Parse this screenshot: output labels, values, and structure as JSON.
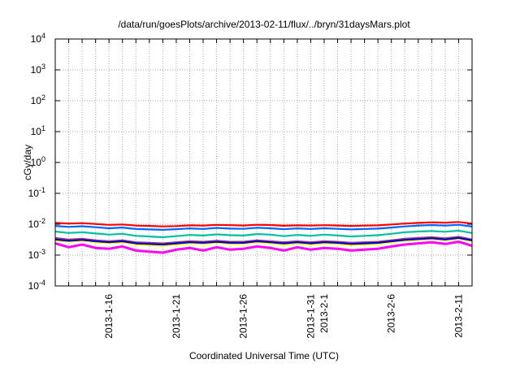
{
  "chart_data": {
    "type": "line",
    "title": "/data/run/goesPlots/archive/2013-02-11/flux/../bryn/31daysMars.plot",
    "xlabel": "Coordinated Universal Time (UTC)",
    "ylabel": "cGy/day",
    "yscale": "log",
    "ylim": [
      0.0001,
      10000
    ],
    "y_ticks": [
      {
        "base": "10",
        "exp": "4"
      },
      {
        "base": "10",
        "exp": "3"
      },
      {
        "base": "10",
        "exp": "2"
      },
      {
        "base": "10",
        "exp": "1"
      },
      {
        "base": "10",
        "exp": "0"
      },
      {
        "base": "10",
        "exp": "-1"
      },
      {
        "base": "10",
        "exp": "-2"
      },
      {
        "base": "10",
        "exp": "-3"
      },
      {
        "base": "10",
        "exp": "-4"
      }
    ],
    "x_start": "2013-01-12",
    "x_end": "2013-02-12",
    "x_tick_labels": [
      {
        "label": "2013-1-16",
        "day": 4
      },
      {
        "label": "2013-1-21",
        "day": 9
      },
      {
        "label": "2013-1-26",
        "day": 14
      },
      {
        "label": "2013-1-31",
        "day": 19
      },
      {
        "label": "2013-2-1",
        "day": 20
      },
      {
        "label": "2013-2-6",
        "day": 25
      },
      {
        "label": "2013-2-11",
        "day": 30
      }
    ],
    "grid": true,
    "series": [
      {
        "name": "red",
        "color": "#ff0000",
        "values": [
          0.011,
          0.0105,
          0.0108,
          0.0102,
          0.0095,
          0.0098,
          0.009,
          0.0088,
          0.0085,
          0.0087,
          0.0092,
          0.009,
          0.0095,
          0.0093,
          0.0091,
          0.0096,
          0.0094,
          0.0089,
          0.0092,
          0.009,
          0.0093,
          0.0091,
          0.0088,
          0.009,
          0.0092,
          0.0098,
          0.0105,
          0.011,
          0.0115,
          0.0112,
          0.0118,
          0.0105
        ]
      },
      {
        "name": "blue",
        "color": "#0066ff",
        "values": [
          0.0088,
          0.0082,
          0.0086,
          0.008,
          0.0074,
          0.0078,
          0.007,
          0.0068,
          0.0066,
          0.0069,
          0.0073,
          0.007,
          0.0076,
          0.0072,
          0.0071,
          0.0077,
          0.0074,
          0.0069,
          0.0073,
          0.007,
          0.0074,
          0.0071,
          0.0068,
          0.007,
          0.0072,
          0.0078,
          0.0085,
          0.009,
          0.0094,
          0.009,
          0.0096,
          0.0084
        ]
      },
      {
        "name": "teal",
        "color": "#00c0a0",
        "values": [
          0.0058,
          0.0052,
          0.0055,
          0.005,
          0.0046,
          0.0049,
          0.0042,
          0.004,
          0.0038,
          0.0041,
          0.0045,
          0.0043,
          0.0047,
          0.0044,
          0.0043,
          0.0048,
          0.0046,
          0.0041,
          0.0045,
          0.0042,
          0.0046,
          0.0043,
          0.004,
          0.0042,
          0.0044,
          0.0049,
          0.0055,
          0.0058,
          0.006,
          0.0057,
          0.0062,
          0.0052
        ]
      },
      {
        "name": "purple",
        "color": "#a04080",
        "values": [
          0.0036,
          0.0032,
          0.0034,
          0.003,
          0.0028,
          0.003,
          0.0026,
          0.0025,
          0.0024,
          0.0026,
          0.0028,
          0.0027,
          0.0029,
          0.0027,
          0.0027,
          0.003,
          0.0028,
          0.0026,
          0.0028,
          0.0026,
          0.0028,
          0.0027,
          0.0025,
          0.0026,
          0.0027,
          0.003,
          0.0034,
          0.0036,
          0.0038,
          0.0035,
          0.0039,
          0.0032
        ]
      },
      {
        "name": "yellow",
        "color": "#ffff00",
        "values": [
          0.003,
          0.0027,
          0.0029,
          0.0026,
          0.0024,
          0.0026,
          0.0022,
          0.0021,
          0.002,
          0.0022,
          0.0024,
          0.0023,
          0.0025,
          0.0023,
          0.0023,
          0.0026,
          0.0024,
          0.0022,
          0.0024,
          0.0022,
          0.0024,
          0.0023,
          0.0021,
          0.0022,
          0.0023,
          0.0026,
          0.0029,
          0.0031,
          0.0033,
          0.003,
          0.0034,
          0.0028
        ]
      },
      {
        "name": "dark-blue",
        "color": "#0000cc",
        "values": [
          0.0032,
          0.0029,
          0.0031,
          0.0028,
          0.0026,
          0.0028,
          0.0024,
          0.0023,
          0.0022,
          0.0024,
          0.0026,
          0.0025,
          0.0027,
          0.0025,
          0.0025,
          0.0028,
          0.0026,
          0.0024,
          0.0026,
          0.0024,
          0.0026,
          0.0025,
          0.0023,
          0.0024,
          0.0025,
          0.0028,
          0.0031,
          0.0033,
          0.0035,
          0.0032,
          0.0036,
          0.003
        ]
      },
      {
        "name": "magenta",
        "color": "#ff00ff",
        "values": [
          0.0024,
          0.0018,
          0.0022,
          0.0017,
          0.0016,
          0.0019,
          0.0014,
          0.0013,
          0.0012,
          0.0015,
          0.0017,
          0.0014,
          0.0018,
          0.0015,
          0.0016,
          0.0019,
          0.0017,
          0.0014,
          0.0018,
          0.0015,
          0.0017,
          0.0016,
          0.0014,
          0.0015,
          0.0016,
          0.0019,
          0.0022,
          0.0024,
          0.0026,
          0.0023,
          0.0027,
          0.002
        ]
      }
    ]
  }
}
